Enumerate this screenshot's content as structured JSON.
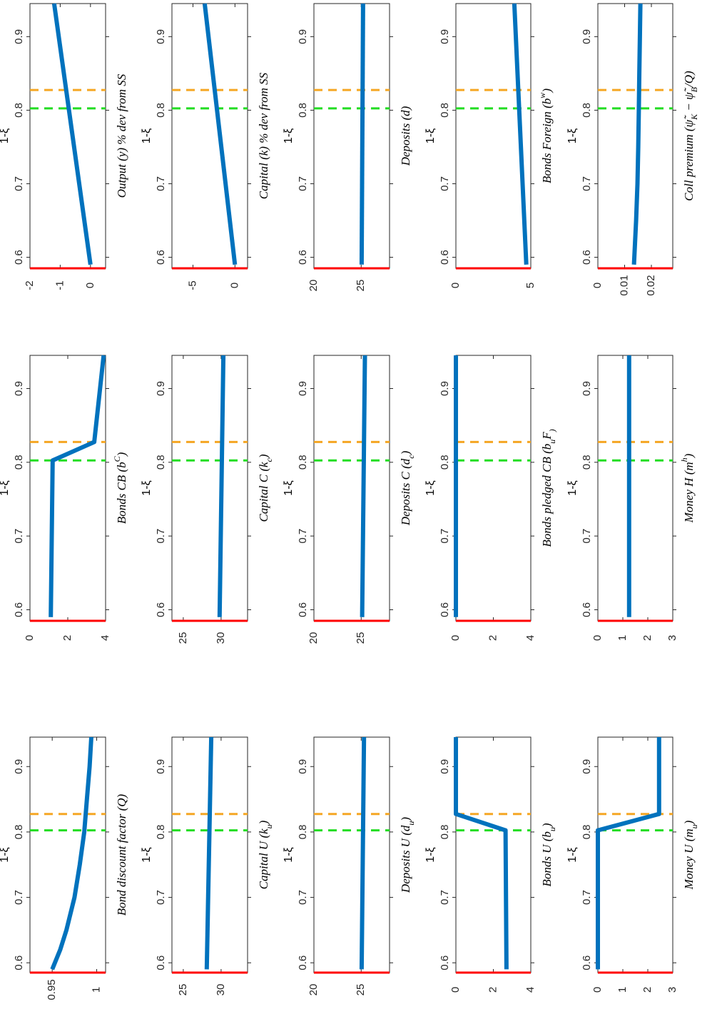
{
  "figure": {
    "orientation": "rotated 90 degrees counter-clockwise",
    "colors": {
      "line": "#0072BD",
      "zero_axis": "#FF0000",
      "green_marker": "#22DD22",
      "orange_marker": "#F5A623",
      "frame": "#262626"
    }
  },
  "chart_data": [
    {
      "type": "line",
      "title": "Money U (m_u)",
      "title_parts": [
        "Money U (m",
        "u",
        ")"
      ],
      "xlabel": "1-ξ",
      "xlim": [
        0.585,
        0.945
      ],
      "ylim": [
        0,
        3
      ],
      "yticks": [
        0,
        1,
        2,
        3
      ],
      "ytick_labels": [
        "0",
        "1",
        "2",
        "3"
      ],
      "xticks": [
        0.6,
        0.7,
        0.8,
        0.9
      ],
      "xtick_labels": [
        "0.6",
        "0.7",
        "0.8",
        "0.9"
      ],
      "markers": [
        0.8025,
        0.8275
      ],
      "x": [
        0.59,
        0.8025,
        0.8275,
        0.945
      ],
      "y": [
        0,
        0,
        2.45,
        2.45
      ]
    },
    {
      "type": "line",
      "title": "Money H (m^h)",
      "title_parts": [
        "Money H (m",
        "h",
        ")"
      ],
      "xlabel": "1-ξ",
      "xlim": [
        0.585,
        0.945
      ],
      "ylim": [
        0,
        3
      ],
      "yticks": [
        0,
        1,
        2,
        3
      ],
      "ytick_labels": [
        "0",
        "1",
        "2",
        "3"
      ],
      "xticks": [
        0.6,
        0.7,
        0.8,
        0.9
      ],
      "xtick_labels": [
        "0.6",
        "0.7",
        "0.8",
        "0.9"
      ],
      "markers": [
        0.8025,
        0.8275
      ],
      "x": [
        0.59,
        0.945
      ],
      "y": [
        1.25,
        1.25
      ]
    },
    {
      "type": "line",
      "title": "Coll premium (ψ̃_K − ψ̃_B/Q)",
      "title_parts": [
        "Coll premium (ψ̃",
        "K",
        " − ψ̃",
        "B",
        "/Q)"
      ],
      "xlabel": "1-ξ",
      "xlim": [
        0.585,
        0.945
      ],
      "ylim": [
        0,
        0.028
      ],
      "yticks": [
        0,
        0.01,
        0.02
      ],
      "ytick_labels": [
        "0",
        "0.01",
        "0.02"
      ],
      "xticks": [
        0.6,
        0.7,
        0.8,
        0.9
      ],
      "xtick_labels": [
        "0.6",
        "0.7",
        "0.8",
        "0.9"
      ],
      "markers": [
        0.8025,
        0.8275
      ],
      "x": [
        0.59,
        0.65,
        0.7,
        0.75,
        0.8,
        0.85,
        0.9,
        0.945
      ],
      "y": [
        0.0135,
        0.0143,
        0.0148,
        0.0151,
        0.0153,
        0.0155,
        0.0157,
        0.0159
      ]
    },
    {
      "type": "line",
      "title": "Bonds U (b_u)",
      "title_parts": [
        "Bonds U (b",
        "u",
        ")"
      ],
      "xlabel": "1-ξ",
      "xlim": [
        0.585,
        0.945
      ],
      "ylim": [
        0,
        4
      ],
      "yticks": [
        0,
        2,
        4
      ],
      "ytick_labels": [
        "0",
        "2",
        "4"
      ],
      "xticks": [
        0.6,
        0.7,
        0.8,
        0.9
      ],
      "xtick_labels": [
        "0.6",
        "0.7",
        "0.8",
        "0.9"
      ],
      "markers": [
        0.8025,
        0.8275
      ],
      "x": [
        0.59,
        0.8025,
        0.8275,
        0.945
      ],
      "y": [
        2.7,
        2.65,
        0,
        0
      ]
    },
    {
      "type": "line",
      "title": "Bonds pledged CB (b_u^F)",
      "title_parts": [
        "Bonds pledged CB (b",
        "u",
        "F",
        ")"
      ],
      "xlabel": "1-ξ",
      "xlim": [
        0.585,
        0.945
      ],
      "ylim": [
        0,
        4
      ],
      "yticks": [
        0,
        2,
        4
      ],
      "ytick_labels": [
        "0",
        "2",
        "4"
      ],
      "xticks": [
        0.6,
        0.7,
        0.8,
        0.9
      ],
      "xtick_labels": [
        "0.6",
        "0.7",
        "0.8",
        "0.9"
      ],
      "markers": [
        0.8025,
        0.8275
      ],
      "x": [
        0.59,
        0.945
      ],
      "y": [
        0,
        0
      ]
    },
    {
      "type": "line",
      "title": "Bonds Foreign (b^w)",
      "title_parts": [
        "Bonds Foreign (b",
        "w",
        ")"
      ],
      "xlabel": "1-ξ",
      "xlim": [
        0.585,
        0.945
      ],
      "ylim": [
        0,
        5
      ],
      "yticks": [
        0,
        5
      ],
      "ytick_labels": [
        "0",
        "5"
      ],
      "xticks": [
        0.6,
        0.7,
        0.8,
        0.9
      ],
      "xtick_labels": [
        "0.6",
        "0.7",
        "0.8",
        "0.9"
      ],
      "markers": [
        0.8025,
        0.8275
      ],
      "x": [
        0.59,
        0.945
      ],
      "y": [
        4.7,
        3.9
      ]
    },
    {
      "type": "line",
      "title": "Deposits U (d_u)",
      "title_parts": [
        "Deposits U (d",
        "u",
        ")"
      ],
      "xlabel": "1-ξ",
      "xlim": [
        0.585,
        0.945
      ],
      "ylim": [
        20,
        28
      ],
      "yticks": [
        20,
        25
      ],
      "ytick_labels": [
        "20",
        "25"
      ],
      "xticks": [
        0.6,
        0.7,
        0.8,
        0.9
      ],
      "xtick_labels": [
        "0.6",
        "0.7",
        "0.8",
        "0.9"
      ],
      "markers": [
        0.8025,
        0.8275
      ],
      "x": [
        0.59,
        0.945
      ],
      "y": [
        25.05,
        25.3
      ]
    },
    {
      "type": "line",
      "title": "Deposits C (d_c)",
      "title_parts": [
        "Deposits C (d",
        "c",
        ")"
      ],
      "xlabel": "1-ξ",
      "xlim": [
        0.585,
        0.945
      ],
      "ylim": [
        20,
        28
      ],
      "yticks": [
        20,
        25
      ],
      "ytick_labels": [
        "20",
        "25"
      ],
      "xticks": [
        0.6,
        0.7,
        0.8,
        0.9
      ],
      "xtick_labels": [
        "0.6",
        "0.7",
        "0.8",
        "0.9"
      ],
      "markers": [
        0.8025,
        0.8275
      ],
      "x": [
        0.59,
        0.945
      ],
      "y": [
        25.1,
        25.4
      ]
    },
    {
      "type": "line",
      "title": "Deposits (d)",
      "title_parts": [
        "Deposits (d)"
      ],
      "xlabel": "1-ξ",
      "xlim": [
        0.585,
        0.945
      ],
      "ylim": [
        20,
        28
      ],
      "yticks": [
        20,
        25
      ],
      "ytick_labels": [
        "20",
        "25"
      ],
      "xticks": [
        0.6,
        0.7,
        0.8,
        0.9
      ],
      "xtick_labels": [
        "0.6",
        "0.7",
        "0.8",
        "0.9"
      ],
      "markers": [
        0.8025,
        0.8275
      ],
      "x": [
        0.59,
        0.945
      ],
      "y": [
        25.05,
        25.2
      ]
    },
    {
      "type": "line",
      "title": "Capital U (k_u)",
      "title_parts": [
        "Capital U (k",
        "u",
        ")"
      ],
      "xlabel": "1-ξ",
      "xlim": [
        0.585,
        0.945
      ],
      "ylim": [
        23.5,
        33.5
      ],
      "yticks": [
        25,
        30
      ],
      "ytick_labels": [
        "25",
        "30"
      ],
      "xticks": [
        0.6,
        0.7,
        0.8,
        0.9
      ],
      "xtick_labels": [
        "0.6",
        "0.7",
        "0.8",
        "0.9"
      ],
      "markers": [
        0.8025,
        0.8275
      ],
      "x": [
        0.59,
        0.945
      ],
      "y": [
        28.1,
        28.7
      ]
    },
    {
      "type": "line",
      "title": "Capital C (k_c)",
      "title_parts": [
        "Capital C (k",
        "c",
        ")"
      ],
      "xlabel": "1-ξ",
      "xlim": [
        0.585,
        0.945
      ],
      "ylim": [
        23.5,
        33.5
      ],
      "yticks": [
        25,
        30
      ],
      "ytick_labels": [
        "25",
        "30"
      ],
      "xticks": [
        0.6,
        0.7,
        0.8,
        0.9
      ],
      "xtick_labels": [
        "0.6",
        "0.7",
        "0.8",
        "0.9"
      ],
      "markers": [
        0.8025,
        0.8275
      ],
      "x": [
        0.59,
        0.945
      ],
      "y": [
        29.8,
        30.3
      ]
    },
    {
      "type": "line",
      "title": "Capital (k) % dev from SS",
      "title_parts": [
        "Capital (k) % dev from SS"
      ],
      "xlabel": "1-ξ",
      "xlim": [
        0.585,
        0.945
      ],
      "ylim": [
        -7.5,
        1.5
      ],
      "yticks": [
        -5,
        0
      ],
      "ytick_labels": [
        "-5",
        "0"
      ],
      "xticks": [
        0.6,
        0.7,
        0.8,
        0.9
      ],
      "xtick_labels": [
        "0.6",
        "0.7",
        "0.8",
        "0.9"
      ],
      "markers": [
        0.8025,
        0.8275
      ],
      "x": [
        0.59,
        0.945
      ],
      "y": [
        0,
        -3.6
      ]
    },
    {
      "type": "line",
      "title": "Bond discount factor (Q)",
      "title_parts": [
        "Bond discount factor (Q)"
      ],
      "xlabel": "1-ξ",
      "xlim": [
        0.585,
        0.945
      ],
      "ylim": [
        0.925,
        1.01
      ],
      "yticks": [
        0.95,
        1
      ],
      "ytick_labels": [
        "0.95",
        "1"
      ],
      "xticks": [
        0.6,
        0.7,
        0.8,
        0.9
      ],
      "xtick_labels": [
        "0.6",
        "0.7",
        "0.8",
        "0.9"
      ],
      "markers": [
        0.8025,
        0.8275
      ],
      "x": [
        0.59,
        0.62,
        0.65,
        0.7,
        0.75,
        0.8,
        0.85,
        0.9,
        0.945
      ],
      "y": [
        0.95,
        0.959,
        0.966,
        0.975,
        0.981,
        0.986,
        0.989,
        0.992,
        0.994
      ]
    },
    {
      "type": "line",
      "title": "Bonds CB (b^C)",
      "title_parts": [
        "Bonds CB (b",
        "C",
        ")"
      ],
      "xlabel": "1-ξ",
      "xlim": [
        0.585,
        0.945
      ],
      "ylim": [
        0,
        4
      ],
      "yticks": [
        0,
        2,
        4
      ],
      "ytick_labels": [
        "0",
        "2",
        "4"
      ],
      "xticks": [
        0.6,
        0.7,
        0.8,
        0.9
      ],
      "xtick_labels": [
        "0.6",
        "0.7",
        "0.8",
        "0.9"
      ],
      "markers": [
        0.8025,
        0.8275
      ],
      "x": [
        0.59,
        0.8025,
        0.8275,
        0.945
      ],
      "y": [
        1.1,
        1.2,
        3.4,
        3.9
      ]
    },
    {
      "type": "line",
      "title": "Output (y) % dev from SS",
      "title_parts": [
        "Output (y) % dev from SS"
      ],
      "xlabel": "1-ξ",
      "xlim": [
        0.585,
        0.945
      ],
      "ylim": [
        -2,
        0.5
      ],
      "yticks": [
        -2,
        -1,
        0
      ],
      "ytick_labels": [
        "-2",
        "-1",
        "0"
      ],
      "xticks": [
        0.6,
        0.7,
        0.8,
        0.9
      ],
      "xtick_labels": [
        "0.6",
        "0.7",
        "0.8",
        "0.9"
      ],
      "markers": [
        0.8025,
        0.8275
      ],
      "x": [
        0.59,
        0.945
      ],
      "y": [
        0,
        -1.2
      ]
    }
  ]
}
